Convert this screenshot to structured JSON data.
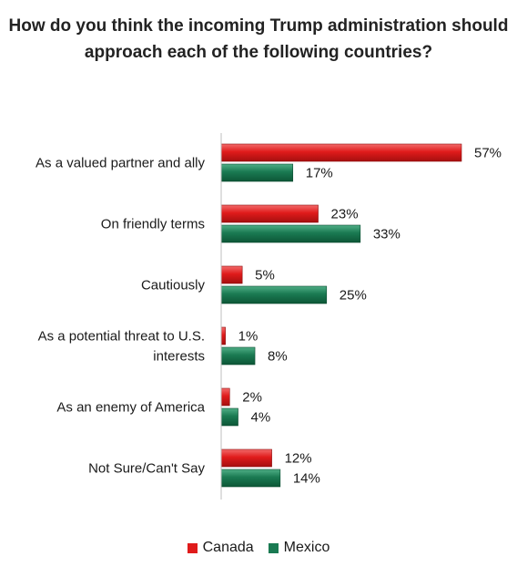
{
  "chart_data": {
    "type": "bar",
    "orientation": "horizontal",
    "title": "How do you think the incoming Trump administration should approach each of the following countries?",
    "categories": [
      "As a valued partner and ally",
      "On friendly terms",
      "Cautiously",
      "As a potential threat to U.S. interests",
      "As an enemy of America",
      "Not Sure/Can't Say"
    ],
    "series": [
      {
        "name": "Canada",
        "color": "#e01b1b",
        "values": [
          57,
          23,
          5,
          1,
          2,
          12
        ],
        "labels": [
          "57%",
          "23%",
          "5%",
          "1%",
          "2%",
          "12%"
        ]
      },
      {
        "name": "Mexico",
        "color": "#1a7a52",
        "values": [
          17,
          33,
          25,
          8,
          4,
          14
        ],
        "labels": [
          "17%",
          "33%",
          "25%",
          "8%",
          "4%",
          "14%"
        ]
      }
    ],
    "xlim": [
      0,
      60
    ],
    "grid": false,
    "legend_position": "bottom"
  }
}
